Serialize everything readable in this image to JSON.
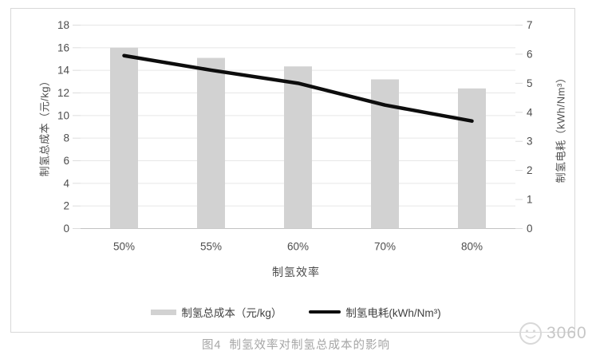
{
  "figure": {
    "caption": "图4  制氢效率对制氢总成本的影响",
    "watermark": "3060"
  },
  "chart_data": {
    "type": "bar",
    "subtype": "bar-line-combo-dual-axis",
    "title": "",
    "categories": [
      "50%",
      "55%",
      "60%",
      "70%",
      "80%"
    ],
    "xlabel": "制氢效率",
    "left_axis": {
      "label": "制氢总成本（元/kg）",
      "min": 0,
      "max": 18,
      "step": 2
    },
    "right_axis": {
      "label": "制氢电耗（kWh/Nm³）",
      "min": 0,
      "max": 7,
      "step": 1
    },
    "grid": true,
    "legend_position": "bottom",
    "series": [
      {
        "name": "制氢总成本（元/kg）",
        "type": "bar",
        "axis": "left",
        "color": "#d2d2d2",
        "values": [
          16.0,
          15.1,
          14.35,
          13.2,
          12.4
        ]
      },
      {
        "name": "制氢电耗(kWh/Nm³)",
        "type": "line",
        "axis": "right",
        "color": "#0d0d0d",
        "values": [
          5.95,
          5.45,
          5.0,
          4.25,
          3.7
        ]
      }
    ]
  }
}
